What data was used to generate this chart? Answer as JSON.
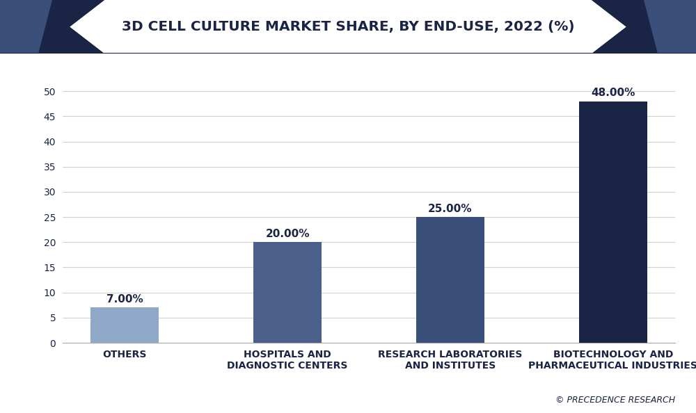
{
  "title": "3D CELL CULTURE MARKET SHARE, BY END-USE, 2022 (%)",
  "categories": [
    "OTHERS",
    "HOSPITALS AND\nDIAGNOSTIC CENTERS",
    "RESEARCH LABORATORIES\nAND INSTITUTES",
    "BIOTECHNOLOGY AND\nPHARMACEUTICAL INDUSTRIES"
  ],
  "values": [
    7.0,
    20.0,
    25.0,
    48.0
  ],
  "labels": [
    "7.00%",
    "20.00%",
    "25.00%",
    "48.00%"
  ],
  "bar_colors": [
    "#8fa8c8",
    "#4a5f8a",
    "#3a4f7a",
    "#1a2444"
  ],
  "background_color": "#ffffff",
  "plot_bg_color": "#ffffff",
  "title_color": "#1a2444",
  "tick_color": "#1a2444",
  "label_color": "#1a2444",
  "grid_color": "#d0d0d0",
  "border_color": "#1a2444",
  "ylim": [
    0,
    55
  ],
  "yticks": [
    0,
    5,
    10,
    15,
    20,
    25,
    30,
    35,
    40,
    45,
    50
  ],
  "title_fontsize": 14.5,
  "tick_fontsize": 10,
  "value_fontsize": 11,
  "footer_text": "© PRECEDENCE RESEARCH",
  "header_dark_color": "#1a2444",
  "header_mid_color": "#3a4f7a"
}
